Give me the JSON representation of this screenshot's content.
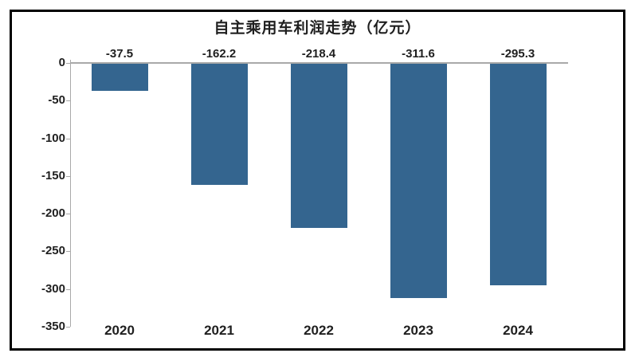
{
  "chart_data": {
    "type": "bar",
    "title": "自主乘用车利润走势（亿元）",
    "categories": [
      "2020",
      "2021",
      "2022",
      "2023",
      "2024"
    ],
    "values": [
      -37.5,
      -162.2,
      -218.4,
      -311.6,
      -295.3
    ],
    "value_labels": [
      "-37.5",
      "-162.2",
      "-218.4",
      "-311.6",
      "-295.3"
    ],
    "xlabel": "",
    "ylabel": "",
    "ylim": [
      -350,
      0
    ],
    "yticks": [
      0,
      -50,
      -100,
      -150,
      -200,
      -250,
      -300,
      -350
    ],
    "ytick_labels": [
      "0",
      "-50",
      "-100",
      "-150",
      "-200",
      "-250",
      "-300",
      "-350"
    ],
    "grid": false,
    "legend_position": "none",
    "bar_color": "#34658f",
    "axis_color": "#a9a9a9",
    "text_color": "#1f1f1f",
    "frame_border_color": "#000000",
    "background_color": "#ffffff"
  }
}
